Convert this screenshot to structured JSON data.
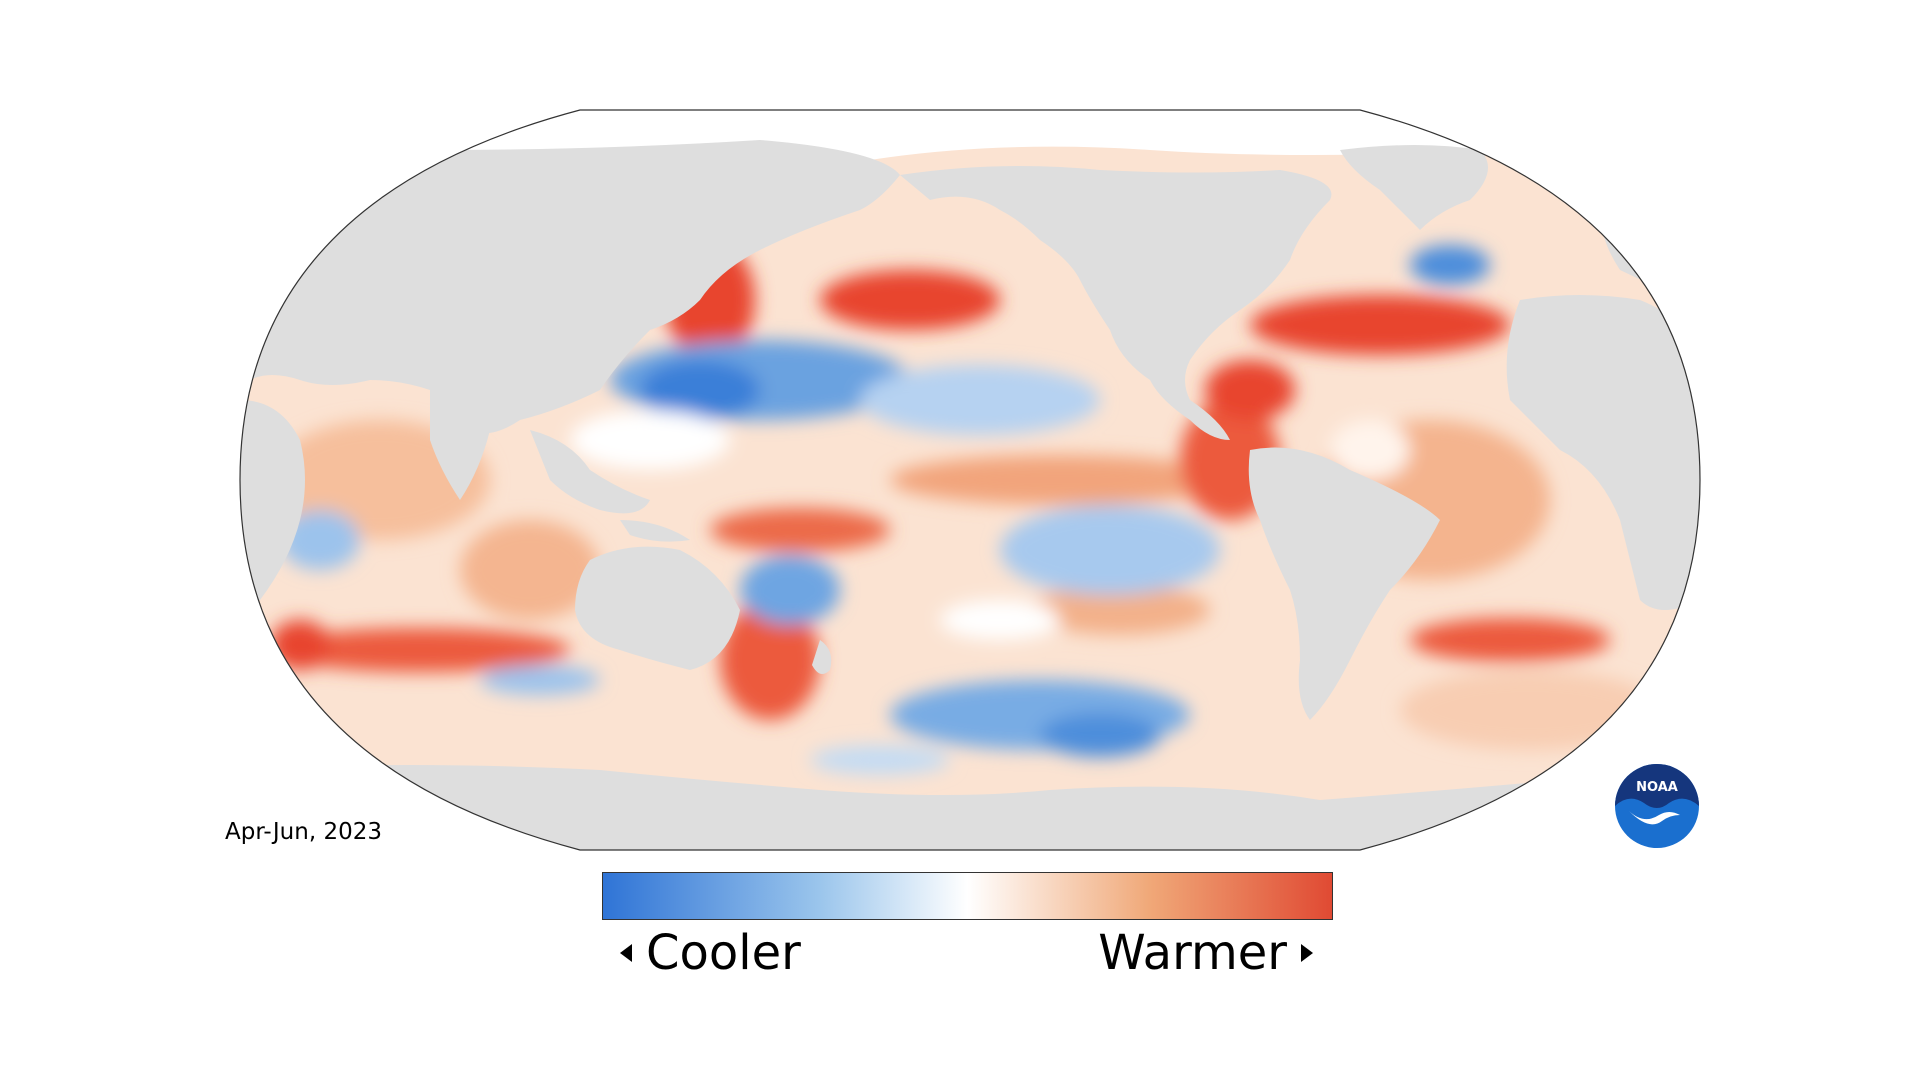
{
  "period": "Apr-Jun, 2023",
  "legend": {
    "low_label": "Cooler",
    "high_label": "Warmer",
    "gradient_colors": [
      "#2f74d6",
      "#8fbce9",
      "#ffffff",
      "#f2b789",
      "#e04a33"
    ]
  },
  "logo": {
    "text": "NOAA",
    "icon": "noaa-logo"
  },
  "colors": {
    "land": "#dedede",
    "ice": "#ffffff",
    "warm": "#e8452f",
    "warm_light": "#f7c9aa",
    "cool": "#3a7fd8",
    "cool_light": "#bdd6f2"
  }
}
